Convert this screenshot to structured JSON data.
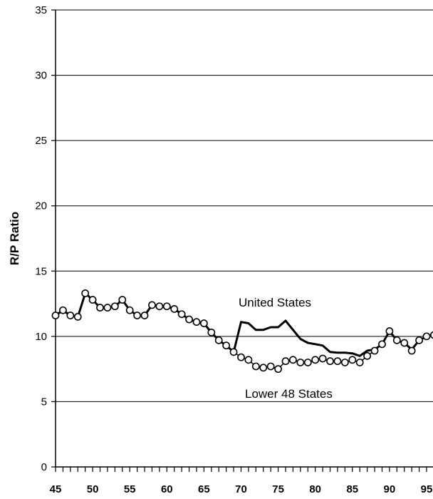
{
  "chart_data": {
    "type": "line",
    "ylabel": "R/P Ratio",
    "xlim": [
      45,
      96
    ],
    "ylim": [
      0,
      35
    ],
    "grid": "horizontal",
    "y_ticks": [
      "0",
      "5",
      "10",
      "15",
      "20",
      "25",
      "30",
      "35"
    ],
    "x_ticks": [
      "45",
      "50",
      "55",
      "60",
      "65",
      "70",
      "75",
      "80",
      "85",
      "90",
      "95"
    ],
    "annotations": [
      "United States",
      "Lower 48 States"
    ],
    "series": [
      {
        "name": "United States",
        "marker": "none",
        "x": [
          45,
          46,
          47,
          48,
          49,
          50,
          51,
          52,
          53,
          54,
          55,
          56,
          57,
          58,
          59,
          60,
          61,
          62,
          63,
          64,
          65,
          66,
          67,
          68,
          69,
          70,
          71,
          72,
          73,
          74,
          75,
          76,
          77,
          78,
          79,
          80,
          81,
          82,
          83,
          84,
          85,
          86,
          87,
          88,
          89,
          90,
          91,
          92,
          93,
          94,
          95,
          96
        ],
        "y": [
          11.6,
          12.0,
          11.6,
          11.5,
          13.3,
          12.8,
          12.2,
          12.2,
          12.3,
          12.8,
          12.0,
          11.6,
          11.6,
          12.4,
          12.3,
          12.3,
          12.1,
          11.7,
          11.3,
          11.1,
          11.0,
          10.3,
          9.7,
          9.3,
          8.8,
          11.1,
          11.0,
          10.5,
          10.5,
          10.7,
          10.7,
          11.2,
          10.5,
          9.8,
          9.5,
          9.4,
          9.3,
          8.8,
          8.75,
          8.75,
          8.7,
          8.5,
          8.9,
          9.0,
          9.4,
          10.4,
          9.7,
          9.5,
          9.0,
          9.7,
          10.0,
          10.1
        ]
      },
      {
        "name": "Lower 48 States",
        "marker": "circle",
        "x": [
          45,
          46,
          47,
          48,
          49,
          50,
          51,
          52,
          53,
          54,
          55,
          56,
          57,
          58,
          59,
          60,
          61,
          62,
          63,
          64,
          65,
          66,
          67,
          68,
          69,
          70,
          71,
          72,
          73,
          74,
          75,
          76,
          77,
          78,
          79,
          80,
          81,
          82,
          83,
          84,
          85,
          86,
          87,
          88,
          89,
          90,
          91,
          92,
          93,
          94,
          95,
          96
        ],
        "y": [
          11.6,
          12.0,
          11.6,
          11.5,
          13.3,
          12.8,
          12.2,
          12.2,
          12.3,
          12.8,
          12.0,
          11.6,
          11.6,
          12.4,
          12.3,
          12.3,
          12.1,
          11.7,
          11.3,
          11.1,
          11.0,
          10.3,
          9.7,
          9.3,
          8.8,
          8.4,
          8.2,
          7.7,
          7.6,
          7.7,
          7.5,
          8.1,
          8.2,
          8.0,
          8.0,
          8.2,
          8.3,
          8.1,
          8.1,
          8.0,
          8.2,
          8.0,
          8.5,
          8.9,
          9.4,
          10.4,
          9.7,
          9.5,
          8.9,
          9.7,
          10.0,
          10.1
        ]
      }
    ]
  }
}
